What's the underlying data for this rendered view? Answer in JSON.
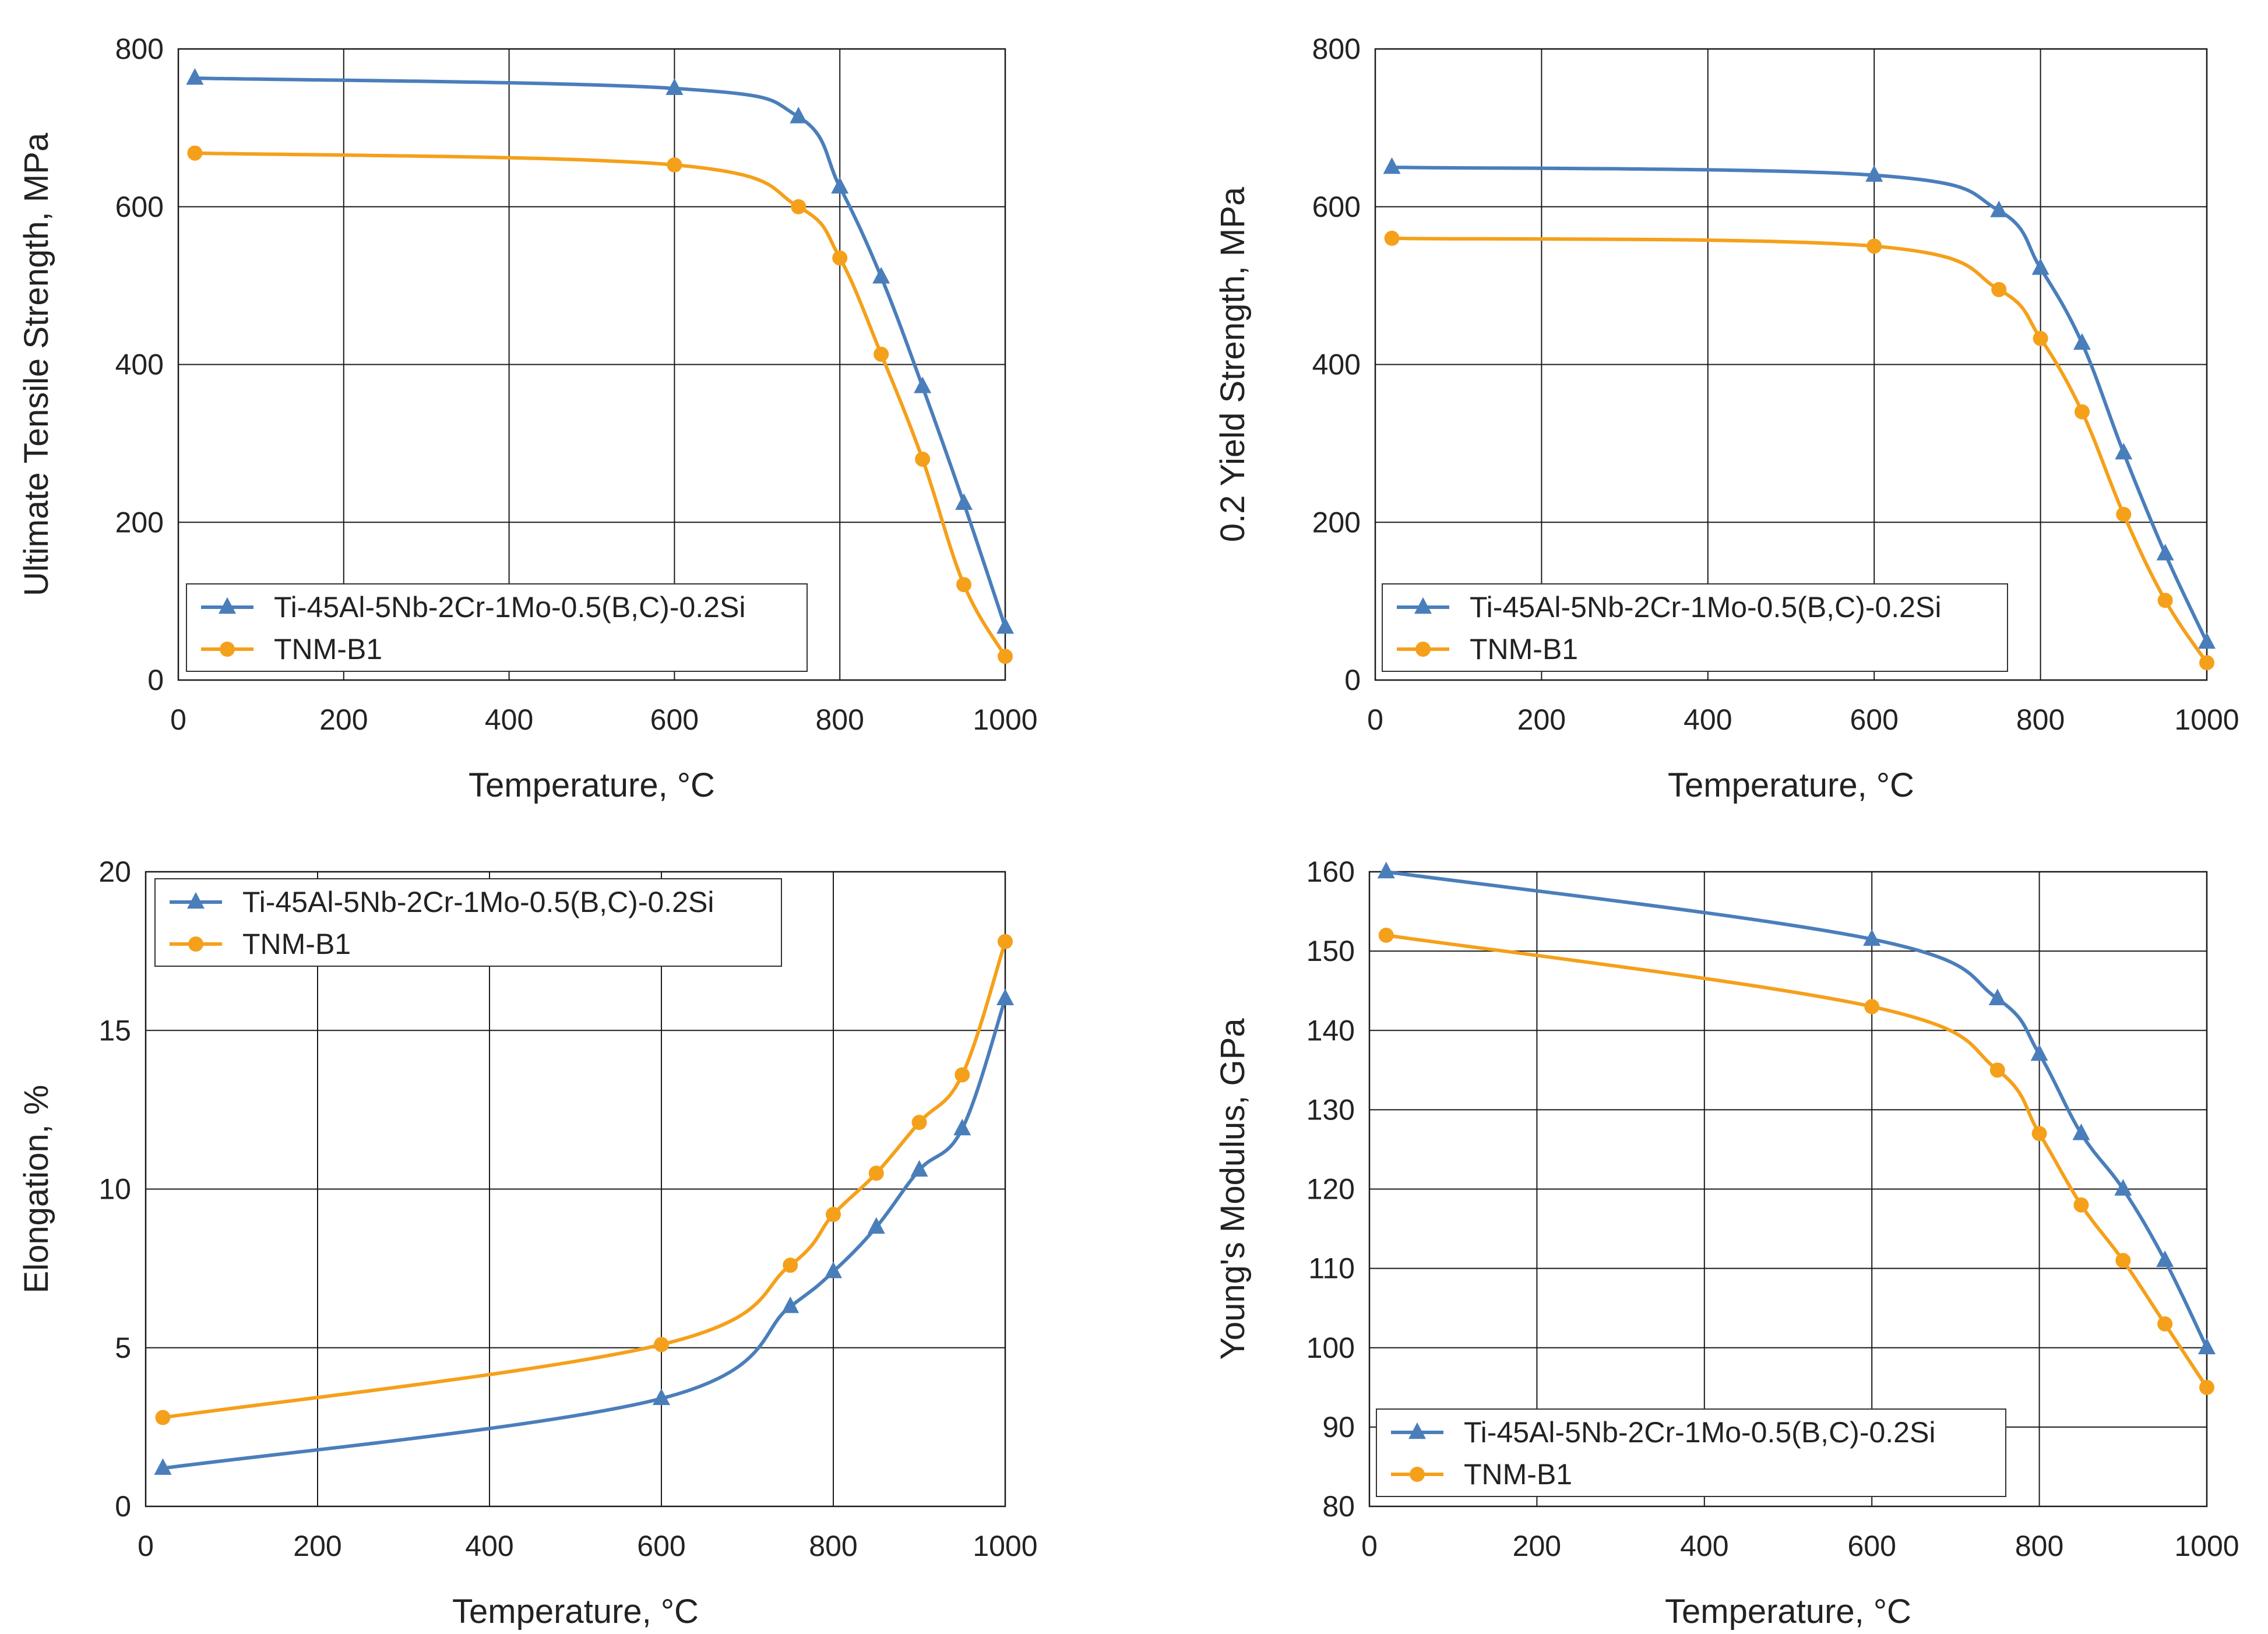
{
  "colors": {
    "series1": "#4a7ebb",
    "series2": "#f5a01a",
    "grid": "#1a1a1a"
  },
  "chart_data": [
    {
      "type": "line",
      "xlabel": "Temperature, °C",
      "ylabel": "Ultimate Tensile Strength, MPa",
      "xlim": [
        0,
        1000
      ],
      "ylim": [
        0,
        800
      ],
      "xticks": [
        0,
        200,
        400,
        600,
        800,
        1000
      ],
      "yticks": [
        0,
        200,
        400,
        600,
        800
      ],
      "grid": true,
      "legend": "bottom-left",
      "series": [
        {
          "name": "Ti-45Al-5Nb-2Cr-1Mo-0.5(B,C)-0.2Si",
          "marker": "triangle",
          "x": [
            20,
            600,
            750,
            800,
            850,
            900,
            950,
            1000
          ],
          "y": [
            763,
            750,
            714,
            625,
            511,
            372,
            224,
            67
          ]
        },
        {
          "name": "TNM-B1",
          "marker": "circle",
          "x": [
            20,
            600,
            750,
            800,
            850,
            900,
            950,
            1000
          ],
          "y": [
            668,
            653,
            600,
            535,
            413,
            280,
            121,
            30
          ]
        }
      ]
    },
    {
      "type": "line",
      "xlabel": "Temperature, °C",
      "ylabel": "0.2 Yield Strength, MPa",
      "xlim": [
        0,
        1000
      ],
      "ylim": [
        0,
        800
      ],
      "xticks": [
        0,
        200,
        400,
        600,
        800,
        1000
      ],
      "yticks": [
        0,
        200,
        400,
        600,
        800
      ],
      "grid": true,
      "legend": "bottom-left",
      "series": [
        {
          "name": "Ti-45Al-5Nb-2Cr-1Mo-0.5(B,C)-0.2Si",
          "marker": "triangle",
          "x": [
            20,
            600,
            750,
            800,
            850,
            900,
            950,
            1000
          ],
          "y": [
            650,
            640,
            595,
            522,
            427,
            288,
            160,
            48
          ]
        },
        {
          "name": "TNM-B1",
          "marker": "circle",
          "x": [
            20,
            600,
            750,
            800,
            850,
            900,
            950,
            1000
          ],
          "y": [
            560,
            550,
            495,
            433,
            340,
            210,
            101,
            22
          ]
        }
      ]
    },
    {
      "type": "line",
      "xlabel": "Temperature, °C",
      "ylabel": "Elongation, %",
      "xlim": [
        0,
        1000
      ],
      "ylim": [
        0,
        20
      ],
      "xticks": [
        0,
        200,
        400,
        600,
        800,
        1000
      ],
      "yticks": [
        0,
        5,
        10,
        15,
        20
      ],
      "grid": true,
      "legend": "top-left",
      "series": [
        {
          "name": "Ti-45Al-5Nb-2Cr-1Mo-0.5(B,C)-0.2Si",
          "marker": "triangle",
          "x": [
            20,
            600,
            750,
            800,
            850,
            900,
            950,
            1000
          ],
          "y": [
            1.2,
            3.4,
            6.3,
            7.4,
            8.8,
            10.6,
            11.9,
            16.0
          ]
        },
        {
          "name": "TNM-B1",
          "marker": "circle",
          "x": [
            20,
            600,
            750,
            800,
            850,
            900,
            950,
            1000
          ],
          "y": [
            2.8,
            5.1,
            7.6,
            9.2,
            10.5,
            12.1,
            13.6,
            17.8
          ]
        }
      ]
    },
    {
      "type": "line",
      "xlabel": "Temperature, °C",
      "ylabel": "Young's Modulus, GPa",
      "xlim": [
        0,
        1000
      ],
      "ylim": [
        80,
        160
      ],
      "xticks": [
        0,
        200,
        400,
        600,
        800,
        1000
      ],
      "yticks": [
        80,
        90,
        100,
        110,
        120,
        130,
        140,
        150,
        160
      ],
      "grid": true,
      "legend": "bottom-left",
      "series": [
        {
          "name": "Ti-45Al-5Nb-2Cr-1Mo-0.5(B,C)-0.2Si",
          "marker": "triangle",
          "x": [
            20,
            600,
            750,
            800,
            850,
            900,
            950,
            1000
          ],
          "y": [
            160,
            151.5,
            144,
            137,
            127,
            120,
            111,
            100
          ]
        },
        {
          "name": "TNM-B1",
          "marker": "circle",
          "x": [
            20,
            600,
            750,
            800,
            850,
            900,
            950,
            1000
          ],
          "y": [
            152,
            143,
            135,
            127,
            118,
            111,
            103,
            95
          ]
        }
      ]
    }
  ]
}
